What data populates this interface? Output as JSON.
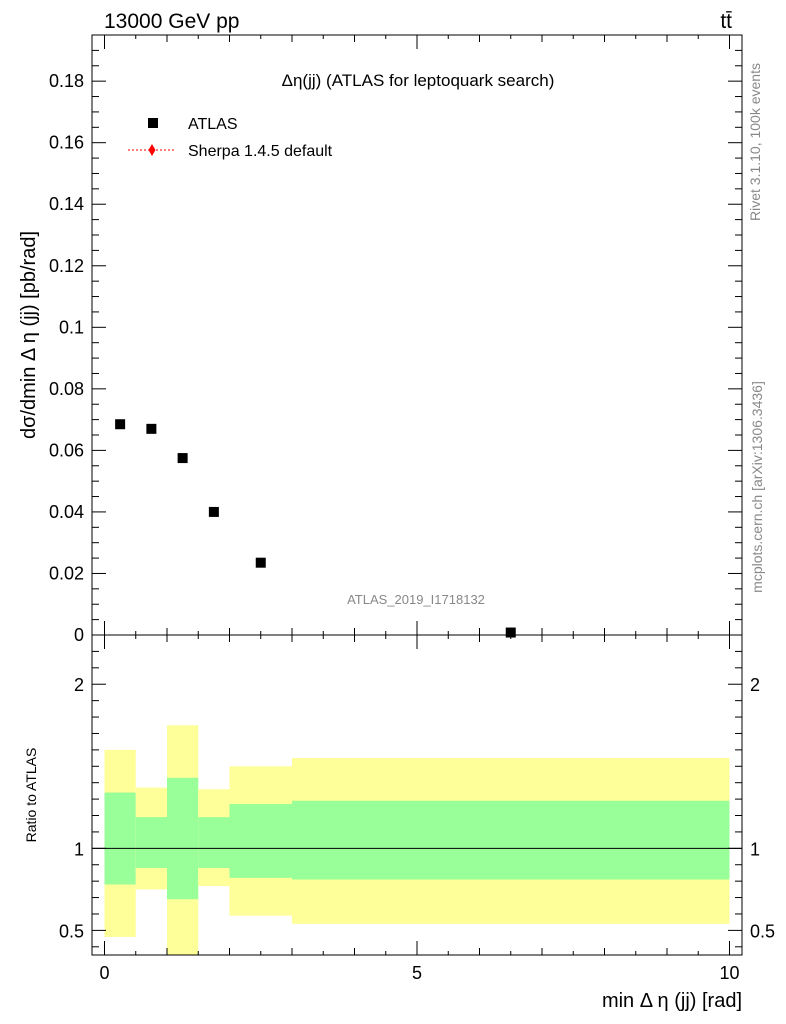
{
  "header": {
    "left": "13000 GeV pp",
    "right": "tt̄"
  },
  "side": {
    "top": "Rivet 3.1.10,  100k events",
    "bottom": "mcplots.cern.ch [arXiv:1306.3436]"
  },
  "chart_data": {
    "type": "scatter",
    "title": "Δη(jj) (ATLAS for leptoquark search)",
    "watermark": "ATLAS_2019_I1718132",
    "xlabel": "min Δ η (jj) [rad]",
    "ylabel": "dσ/dmin Δ η (jj) [pb/rad]",
    "ratio_ylabel": "Ratio to ATLAS",
    "xlim": [
      -0.2,
      10.2
    ],
    "ylim": [
      0,
      0.195
    ],
    "ratio_ylim": [
      0.35,
      2.3
    ],
    "x_ticks": [
      0,
      5,
      10
    ],
    "x_tick_labels": [
      "0",
      "5",
      "10"
    ],
    "y_ticks": [
      0,
      0.02,
      0.04,
      0.06,
      0.08,
      0.1,
      0.12,
      0.14,
      0.16,
      0.18
    ],
    "y_tick_labels": [
      "0",
      "0.02",
      "0.04",
      "0.06",
      "0.08",
      "0.1",
      "0.12",
      "0.14",
      "0.16",
      "0.18"
    ],
    "ratio_ticks": [
      0.5,
      1,
      2
    ],
    "ratio_tick_labels": [
      "0.5",
      "1",
      "2"
    ],
    "legend": [
      {
        "name": "ATLAS",
        "marker": "square",
        "color": "#000000"
      },
      {
        "name": "Sherpa 1.4.5 default",
        "marker": "diamond",
        "color": "#ff0000"
      }
    ],
    "series": [
      {
        "name": "ATLAS",
        "x": [
          0.25,
          0.75,
          1.25,
          1.75,
          2.5,
          6.5
        ],
        "y": [
          0.0685,
          0.067,
          0.0575,
          0.04,
          0.0235,
          0.0008
        ]
      }
    ],
    "bands": [
      {
        "x0": 0.0,
        "x1": 0.5,
        "green": [
          0.78,
          1.34
        ],
        "yellow": [
          0.46,
          1.6
        ]
      },
      {
        "x0": 0.5,
        "x1": 1.0,
        "green": [
          0.88,
          1.19
        ],
        "yellow": [
          0.75,
          1.37
        ]
      },
      {
        "x0": 1.0,
        "x1": 1.5,
        "green": [
          0.69,
          1.43
        ],
        "yellow": [
          0.3,
          1.75
        ]
      },
      {
        "x0": 1.5,
        "x1": 2.0,
        "green": [
          0.88,
          1.19
        ],
        "yellow": [
          0.77,
          1.36
        ]
      },
      {
        "x0": 2.0,
        "x1": 3.0,
        "green": [
          0.82,
          1.27
        ],
        "yellow": [
          0.59,
          1.5
        ]
      },
      {
        "x0": 3.0,
        "x1": 10.0,
        "green": [
          0.81,
          1.29
        ],
        "yellow": [
          0.54,
          1.55
        ]
      }
    ],
    "colors": {
      "green": "#99ff99",
      "yellow": "#ffff99",
      "data": "#000000",
      "mc": "#ff0000"
    }
  }
}
